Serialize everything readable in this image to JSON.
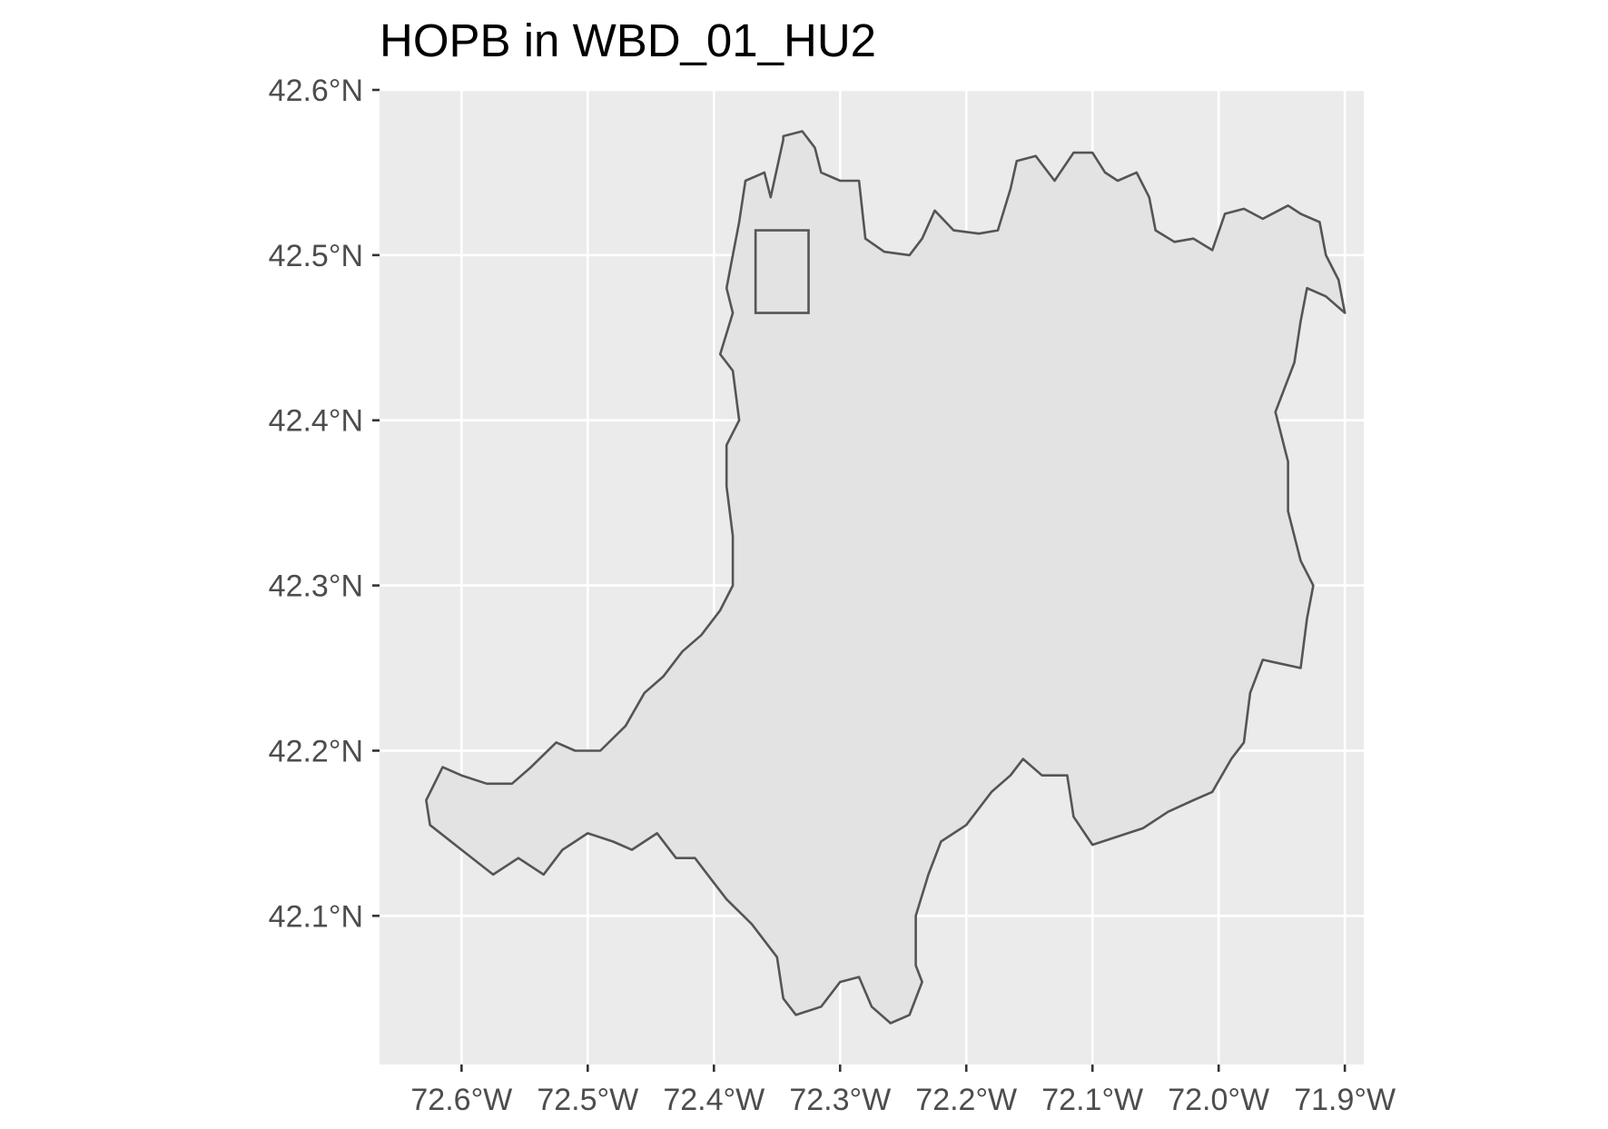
{
  "title": "HOPB in WBD_01_HU2",
  "axes": {
    "x_ticks": [
      "72.6°W",
      "72.5°W",
      "72.4°W",
      "72.3°W",
      "72.2°W",
      "72.1°W",
      "72.0°W",
      "71.9°W"
    ],
    "y_ticks": [
      "42.6°N",
      "42.5°N",
      "42.4°N",
      "42.3°N",
      "42.2°N",
      "42.1°N"
    ]
  },
  "map_data": {
    "type": "map",
    "x_range_deg_lon": [
      -72.665,
      -71.885
    ],
    "y_range_deg_lat": [
      42.01,
      42.6
    ],
    "x_ticks_lon": [
      -72.6,
      -72.5,
      -72.4,
      -72.3,
      -72.2,
      -72.1,
      -72.0,
      -71.9
    ],
    "y_ticks_lat": [
      42.6,
      42.5,
      42.4,
      42.3,
      42.2,
      42.1
    ],
    "watershed_outline_lonlat": [
      [
        -72.345,
        42.572
      ],
      [
        -72.33,
        42.575
      ],
      [
        -72.32,
        42.565
      ],
      [
        -72.315,
        42.55
      ],
      [
        -72.3,
        42.545
      ],
      [
        -72.285,
        42.545
      ],
      [
        -72.28,
        42.51
      ],
      [
        -72.265,
        42.502
      ],
      [
        -72.245,
        42.5
      ],
      [
        -72.235,
        42.51
      ],
      [
        -72.225,
        42.527
      ],
      [
        -72.21,
        42.515
      ],
      [
        -72.19,
        42.513
      ],
      [
        -72.175,
        42.515
      ],
      [
        -72.165,
        42.54
      ],
      [
        -72.16,
        42.557
      ],
      [
        -72.145,
        42.56
      ],
      [
        -72.13,
        42.545
      ],
      [
        -72.115,
        42.562
      ],
      [
        -72.1,
        42.562
      ],
      [
        -72.09,
        42.55
      ],
      [
        -72.08,
        42.545
      ],
      [
        -72.065,
        42.55
      ],
      [
        -72.055,
        42.535
      ],
      [
        -72.05,
        42.515
      ],
      [
        -72.035,
        42.508
      ],
      [
        -72.02,
        42.51
      ],
      [
        -72.005,
        42.503
      ],
      [
        -71.995,
        42.525
      ],
      [
        -71.98,
        42.528
      ],
      [
        -71.965,
        42.522
      ],
      [
        -71.945,
        42.53
      ],
      [
        -71.935,
        42.525
      ],
      [
        -71.92,
        42.52
      ],
      [
        -71.915,
        42.5
      ],
      [
        -71.905,
        42.485
      ],
      [
        -71.9,
        42.465
      ],
      [
        -71.915,
        42.475
      ],
      [
        -71.93,
        42.48
      ],
      [
        -71.935,
        42.46
      ],
      [
        -71.94,
        42.435
      ],
      [
        -71.955,
        42.405
      ],
      [
        -71.945,
        42.375
      ],
      [
        -71.945,
        42.345
      ],
      [
        -71.935,
        42.315
      ],
      [
        -71.925,
        42.3
      ],
      [
        -71.93,
        42.28
      ],
      [
        -71.935,
        42.25
      ],
      [
        -71.965,
        42.255
      ],
      [
        -71.975,
        42.235
      ],
      [
        -71.98,
        42.205
      ],
      [
        -71.99,
        42.195
      ],
      [
        -72.005,
        42.175
      ],
      [
        -72.02,
        42.17
      ],
      [
        -72.04,
        42.163
      ],
      [
        -72.06,
        42.153
      ],
      [
        -72.08,
        42.148
      ],
      [
        -72.1,
        42.143
      ],
      [
        -72.115,
        42.16
      ],
      [
        -72.12,
        42.185
      ],
      [
        -72.14,
        42.185
      ],
      [
        -72.155,
        42.195
      ],
      [
        -72.165,
        42.185
      ],
      [
        -72.18,
        42.175
      ],
      [
        -72.2,
        42.155
      ],
      [
        -72.22,
        42.145
      ],
      [
        -72.23,
        42.125
      ],
      [
        -72.24,
        42.1
      ],
      [
        -72.24,
        42.07
      ],
      [
        -72.235,
        42.06
      ],
      [
        -72.245,
        42.04
      ],
      [
        -72.26,
        42.035
      ],
      [
        -72.275,
        42.045
      ],
      [
        -72.285,
        42.063
      ],
      [
        -72.3,
        42.06
      ],
      [
        -72.315,
        42.045
      ],
      [
        -72.335,
        42.04
      ],
      [
        -72.345,
        42.05
      ],
      [
        -72.35,
        42.075
      ],
      [
        -72.37,
        42.095
      ],
      [
        -72.39,
        42.11
      ],
      [
        -72.405,
        42.125
      ],
      [
        -72.415,
        42.135
      ],
      [
        -72.43,
        42.135
      ],
      [
        -72.445,
        42.15
      ],
      [
        -72.465,
        42.14
      ],
      [
        -72.48,
        42.145
      ],
      [
        -72.5,
        42.15
      ],
      [
        -72.52,
        42.14
      ],
      [
        -72.535,
        42.125
      ],
      [
        -72.555,
        42.135
      ],
      [
        -72.575,
        42.125
      ],
      [
        -72.6,
        42.14
      ],
      [
        -72.625,
        42.155
      ],
      [
        -72.628,
        42.17
      ],
      [
        -72.615,
        42.19
      ],
      [
        -72.6,
        42.185
      ],
      [
        -72.58,
        42.18
      ],
      [
        -72.56,
        42.18
      ],
      [
        -72.545,
        42.19
      ],
      [
        -72.525,
        42.205
      ],
      [
        -72.51,
        42.2
      ],
      [
        -72.49,
        42.2
      ],
      [
        -72.47,
        42.215
      ],
      [
        -72.455,
        42.235
      ],
      [
        -72.44,
        42.245
      ],
      [
        -72.425,
        42.26
      ],
      [
        -72.41,
        42.27
      ],
      [
        -72.395,
        42.285
      ],
      [
        -72.385,
        42.3
      ],
      [
        -72.385,
        42.33
      ],
      [
        -72.39,
        42.36
      ],
      [
        -72.39,
        42.385
      ],
      [
        -72.38,
        42.4
      ],
      [
        -72.385,
        42.43
      ],
      [
        -72.395,
        42.44
      ],
      [
        -72.385,
        42.465
      ],
      [
        -72.39,
        42.48
      ],
      [
        -72.385,
        42.5
      ],
      [
        -72.38,
        42.52
      ],
      [
        -72.375,
        42.545
      ],
      [
        -72.36,
        42.55
      ],
      [
        -72.355,
        42.535
      ],
      [
        -72.345,
        42.57
      ]
    ],
    "highlight_box_lonlat": {
      "lon_min": -72.367,
      "lon_max": -72.325,
      "lat_min": 42.465,
      "lat_max": 42.515
    }
  },
  "colors": {
    "panel_background": "#ebebeb",
    "grid": "#ffffff",
    "watershed_fill": "#e3e3e3",
    "outline": "#555555",
    "tick_text": "#4d4d4d",
    "title_text": "#000000"
  }
}
